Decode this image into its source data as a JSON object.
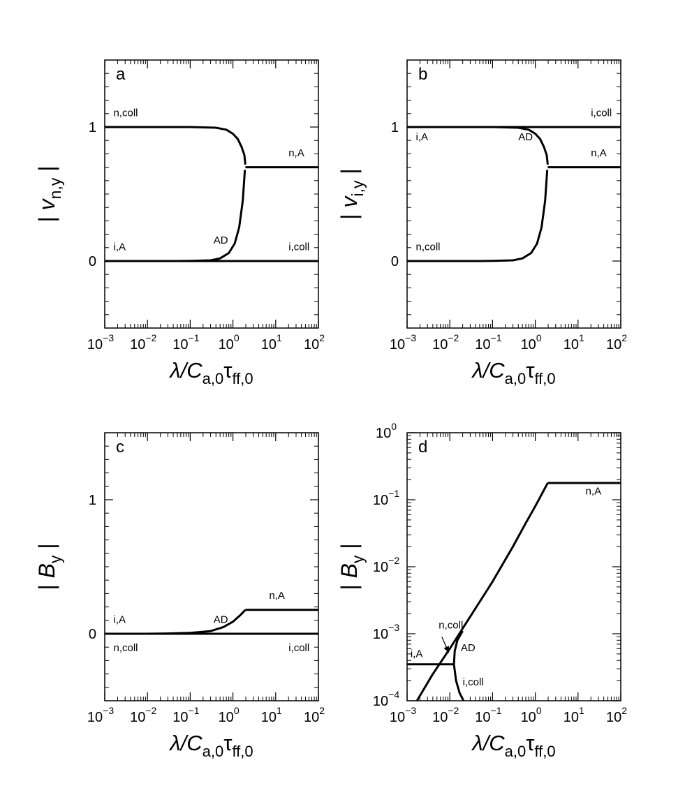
{
  "chart_data": [
    {
      "type": "line",
      "panel_label": "a",
      "x_scale": "log",
      "xlim": [
        0.001,
        100
      ],
      "x_tick_labels": [
        {
          "base": "10",
          "exp": "−3"
        },
        {
          "base": "10",
          "exp": "−2"
        },
        {
          "base": "10",
          "exp": "−1"
        },
        {
          "base": "10",
          "exp": "0"
        },
        {
          "base": "10",
          "exp": "1"
        },
        {
          "base": "10",
          "exp": "2"
        }
      ],
      "xlabel": {
        "main": "λ/C",
        "sub1": "a,0",
        "mid": "τ",
        "sub2": "ff,0"
      },
      "y_scale": "linear",
      "ylim": [
        -0.5,
        1.5
      ],
      "y_tick_labels": [
        "0",
        "1"
      ],
      "ylabel": {
        "main": "v",
        "sub": "n,y"
      },
      "series": [
        {
          "label": "n,coll",
          "x": [
            0.001,
            0.01,
            0.1,
            0.4,
            0.7,
            1.0,
            1.3,
            1.6,
            1.85,
            1.95
          ],
          "y": [
            1.0,
            1.0,
            1.0,
            0.995,
            0.98,
            0.95,
            0.91,
            0.85,
            0.79,
            0.72
          ]
        },
        {
          "label": "n,A",
          "x": [
            1.95,
            100
          ],
          "y": [
            0.7,
            0.7
          ]
        },
        {
          "label": "AD",
          "x": [
            0.001,
            0.01,
            0.05,
            0.1,
            0.3,
            0.5,
            0.8,
            1.1,
            1.4,
            1.7,
            1.9
          ],
          "y": [
            0.0,
            0.0,
            0.0,
            0.001,
            0.005,
            0.02,
            0.06,
            0.13,
            0.25,
            0.45,
            0.68
          ]
        },
        {
          "label": "i,A",
          "x": [
            0.001,
            100
          ],
          "y": [
            0.0,
            0.0
          ]
        },
        {
          "label": "i,coll",
          "x": [
            0.001,
            100
          ],
          "y": [
            0.0,
            0.0
          ]
        }
      ],
      "annotations": [
        {
          "text": "n,coll",
          "x": 0.0016,
          "y": 1.08
        },
        {
          "text": "n,A",
          "x": 20,
          "y": 0.78
        },
        {
          "text": "i,A",
          "x": 0.0016,
          "y": 0.08
        },
        {
          "text": "AD",
          "x": 0.35,
          "y": 0.13
        },
        {
          "text": "i,coll",
          "x": 20,
          "y": 0.08
        }
      ]
    },
    {
      "type": "line",
      "panel_label": "b",
      "x_scale": "log",
      "xlim": [
        0.001,
        100
      ],
      "x_tick_labels": [
        {
          "base": "10",
          "exp": "−3"
        },
        {
          "base": "10",
          "exp": "−2"
        },
        {
          "base": "10",
          "exp": "−1"
        },
        {
          "base": "10",
          "exp": "0"
        },
        {
          "base": "10",
          "exp": "1"
        },
        {
          "base": "10",
          "exp": "2"
        }
      ],
      "xlabel": {
        "main": "λ/C",
        "sub1": "a,0",
        "mid": "τ",
        "sub2": "ff,0"
      },
      "y_scale": "linear",
      "ylim": [
        -0.5,
        1.5
      ],
      "y_tick_labels": [
        "0",
        "1"
      ],
      "ylabel": {
        "main": "v",
        "sub": "i,y"
      },
      "series": [
        {
          "label": "i,coll",
          "x": [
            0.001,
            100
          ],
          "y": [
            1.0,
            1.0
          ]
        },
        {
          "label": "i,A",
          "x": [
            0.001,
            0.01,
            0.1,
            0.4,
            0.7,
            1.0,
            1.3,
            1.6,
            1.85,
            1.95
          ],
          "y": [
            1.0,
            1.0,
            1.0,
            0.995,
            0.98,
            0.95,
            0.91,
            0.85,
            0.79,
            0.72
          ]
        },
        {
          "label": "n,A",
          "x": [
            1.95,
            100
          ],
          "y": [
            0.7,
            0.7
          ]
        },
        {
          "label": "n,coll",
          "x": [
            0.001,
            0.01,
            0.05,
            0.1,
            0.3,
            0.5,
            0.8,
            1.1,
            1.4,
            1.7,
            1.9
          ],
          "y": [
            0.0,
            0.0,
            0.0,
            0.001,
            0.005,
            0.02,
            0.06,
            0.13,
            0.25,
            0.45,
            0.68
          ]
        }
      ],
      "annotations": [
        {
          "text": "i,coll",
          "x": 20,
          "y": 1.08
        },
        {
          "text": "i,A",
          "x": 0.0016,
          "y": 0.9
        },
        {
          "text": "AD",
          "x": 0.4,
          "y": 0.9
        },
        {
          "text": "n,A",
          "x": 20,
          "y": 0.78
        },
        {
          "text": "n,coll",
          "x": 0.0016,
          "y": 0.08
        }
      ]
    },
    {
      "type": "line",
      "panel_label": "c",
      "x_scale": "log",
      "xlim": [
        0.001,
        100
      ],
      "x_tick_labels": [
        {
          "base": "10",
          "exp": "−3"
        },
        {
          "base": "10",
          "exp": "−2"
        },
        {
          "base": "10",
          "exp": "−1"
        },
        {
          "base": "10",
          "exp": "0"
        },
        {
          "base": "10",
          "exp": "1"
        },
        {
          "base": "10",
          "exp": "2"
        }
      ],
      "xlabel": {
        "main": "λ/C",
        "sub1": "a,0",
        "mid": "τ",
        "sub2": "ff,0"
      },
      "y_scale": "linear",
      "ylim": [
        -0.5,
        1.5
      ],
      "y_tick_labels": [
        "0",
        "1"
      ],
      "ylabel": {
        "main": "B",
        "sub": "y"
      },
      "series": [
        {
          "label": "AD",
          "x": [
            0.001,
            0.01,
            0.03,
            0.1,
            0.3,
            0.6,
            1.0,
            1.5,
            1.95
          ],
          "y": [
            0.0,
            0.0,
            0.002,
            0.006,
            0.02,
            0.05,
            0.09,
            0.14,
            0.178
          ]
        },
        {
          "label": "n,A",
          "x": [
            1.95,
            100
          ],
          "y": [
            0.178,
            0.178
          ]
        },
        {
          "label": "i,A",
          "x": [
            0.001,
            100
          ],
          "y": [
            0.0,
            0.0
          ]
        },
        {
          "label": "i,coll",
          "x": [
            0.001,
            100
          ],
          "y": [
            0.0,
            0.0
          ]
        }
      ],
      "annotations": [
        {
          "text": "i,A",
          "x": 0.0016,
          "y": 0.08
        },
        {
          "text": "AD",
          "x": 0.35,
          "y": 0.08
        },
        {
          "text": "n,A",
          "x": 7,
          "y": 0.26
        },
        {
          "text": "n,coll",
          "x": 0.0016,
          "y": -0.13
        },
        {
          "text": "i,coll",
          "x": 20,
          "y": -0.13
        }
      ]
    },
    {
      "type": "line",
      "panel_label": "d",
      "x_scale": "log",
      "xlim": [
        0.001,
        100
      ],
      "x_tick_labels": [
        {
          "base": "10",
          "exp": "−3"
        },
        {
          "base": "10",
          "exp": "−2"
        },
        {
          "base": "10",
          "exp": "−1"
        },
        {
          "base": "10",
          "exp": "0"
        },
        {
          "base": "10",
          "exp": "1"
        },
        {
          "base": "10",
          "exp": "2"
        }
      ],
      "xlabel": {
        "main": "λ/C",
        "sub1": "a,0",
        "mid": "τ",
        "sub2": "ff,0"
      },
      "y_scale": "log",
      "ylim": [
        0.0001,
        1.0
      ],
      "y_tick_labels": [
        {
          "base": "10",
          "exp": "−4"
        },
        {
          "base": "10",
          "exp": "−3"
        },
        {
          "base": "10",
          "exp": "−2"
        },
        {
          "base": "10",
          "exp": "−1"
        },
        {
          "base": "10",
          "exp": "0"
        }
      ],
      "ylabel": {
        "main": "B",
        "sub": "y"
      },
      "series": [
        {
          "label": "n,coll",
          "x": [
            0.0017,
            0.004,
            0.01,
            0.03,
            0.1,
            0.3,
            0.6,
            1.0,
            1.5,
            1.95
          ],
          "y": [
            0.0001,
            0.00025,
            0.0006,
            0.0018,
            0.006,
            0.02,
            0.045,
            0.08,
            0.13,
            0.178
          ]
        },
        {
          "label": "n,A",
          "x": [
            1.95,
            100
          ],
          "y": [
            0.178,
            0.178
          ]
        },
        {
          "label": "i,A",
          "x": [
            0.001,
            0.0125
          ],
          "y": [
            0.00035,
            0.00035
          ]
        },
        {
          "label": "AD",
          "x": [
            0.0125,
            0.013,
            0.015,
            0.02
          ],
          "y": [
            0.00035,
            0.00055,
            0.0008,
            0.0011
          ]
        },
        {
          "label": "i,coll",
          "x": [
            0.0125,
            0.014,
            0.017,
            0.021
          ],
          "y": [
            0.00035,
            0.0002,
            0.00013,
            0.0001
          ]
        }
      ],
      "annotations": [
        {
          "text": "n,A",
          "x": 15,
          "y": 0.12
        },
        {
          "text": "n,coll",
          "x": 0.0055,
          "y": 0.0012
        },
        {
          "text": "AD",
          "x": 0.018,
          "y": 0.00055
        },
        {
          "text": "i,A",
          "x": 0.0012,
          "y": 0.00045
        },
        {
          "text": "i,coll",
          "x": 0.02,
          "y": 0.00017
        }
      ],
      "arrow": {
        "from": [
          0.0065,
          0.0009
        ],
        "to": [
          0.0095,
          0.00052
        ]
      }
    }
  ]
}
